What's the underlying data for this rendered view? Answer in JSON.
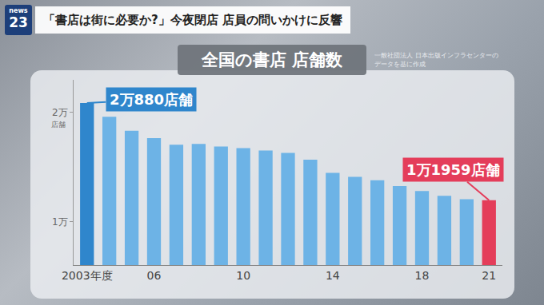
{
  "header": {
    "logo": [
      "news",
      "23"
    ],
    "headline": "「書店は街に必要か?」今夜閉店 店員の問いかけに反響"
  },
  "chart_data": {
    "type": "bar",
    "title": "全国の書店 店舗数",
    "source": [
      "一般社団法人 日本出版インフラセンターの",
      "データを基に作成"
    ],
    "ylabel": "店舗",
    "categories": [
      "2003年度",
      null,
      null,
      "06",
      null,
      null,
      null,
      "10",
      null,
      null,
      null,
      "14",
      null,
      null,
      null,
      "18",
      null,
      null,
      "21"
    ],
    "values": [
      20880,
      19620,
      18330,
      17650,
      17050,
      17120,
      16890,
      16740,
      16520,
      16290,
      15680,
      14470,
      14090,
      13790,
      13260,
      12800,
      12350,
      12050,
      11959
    ],
    "colors": [
      "#2f86cc",
      "#6db3e6",
      "#6db3e6",
      "#6db3e6",
      "#6db3e6",
      "#6db3e6",
      "#6db3e6",
      "#6db3e6",
      "#6db3e6",
      "#6db3e6",
      "#6db3e6",
      "#6db3e6",
      "#6db3e6",
      "#6db3e6",
      "#6db3e6",
      "#6db3e6",
      "#6db3e6",
      "#6db3e6",
      "#e43d5a"
    ],
    "annotations": [
      {
        "category": "2003年度",
        "text": "2万880店舗"
      },
      {
        "category": "21",
        "text": "1万1959店舗"
      }
    ],
    "ylim": [
      6000,
      23000
    ],
    "yticks": [
      {
        "value": 10000,
        "label": "1万"
      },
      {
        "value": 20000,
        "label": "2万"
      }
    ],
    "grid": false
  }
}
